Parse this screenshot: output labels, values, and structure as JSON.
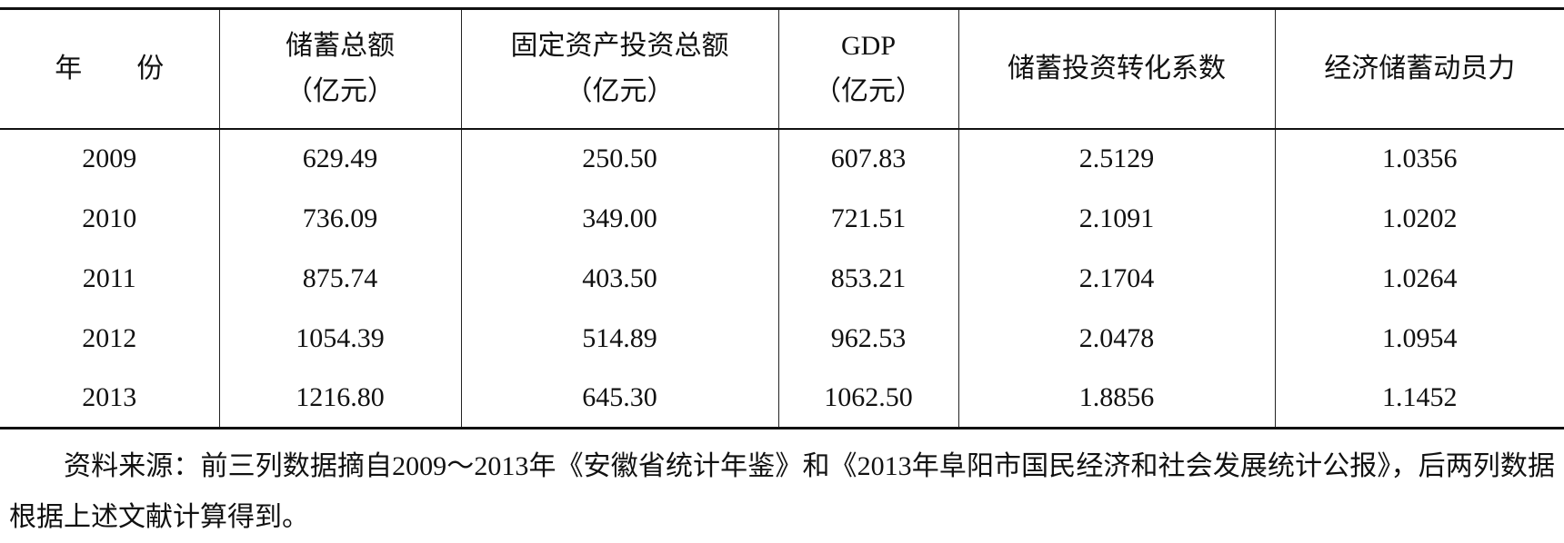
{
  "table": {
    "header": [
      [
        "年　　份"
      ],
      [
        "储蓄总额",
        "（亿元）"
      ],
      [
        "固定资产投资总额",
        "（亿元）"
      ],
      [
        "GDP",
        "（亿元）"
      ],
      [
        "储蓄投资转化系数"
      ],
      [
        "经济储蓄动员力"
      ]
    ],
    "rows": [
      [
        "2009",
        "629.49",
        "250.50",
        "607.83",
        "2.5129",
        "1.0356"
      ],
      [
        "2010",
        "736.09",
        "349.00",
        "721.51",
        "2.1091",
        "1.0202"
      ],
      [
        "2011",
        "875.74",
        "403.50",
        "853.21",
        "2.1704",
        "1.0264"
      ],
      [
        "2012",
        "1054.39",
        "514.89",
        "962.53",
        "2.0478",
        "1.0954"
      ],
      [
        "2013",
        "1216.80",
        "645.30",
        "1062.50",
        "1.8856",
        "1.1452"
      ]
    ]
  },
  "note": "资料来源：前三列数据摘自2009～2013年《安徽省统计年鉴》和《2013年阜阳市国民经济和社会发展统计公报》，后两列数据根据上述文献计算得到。"
}
